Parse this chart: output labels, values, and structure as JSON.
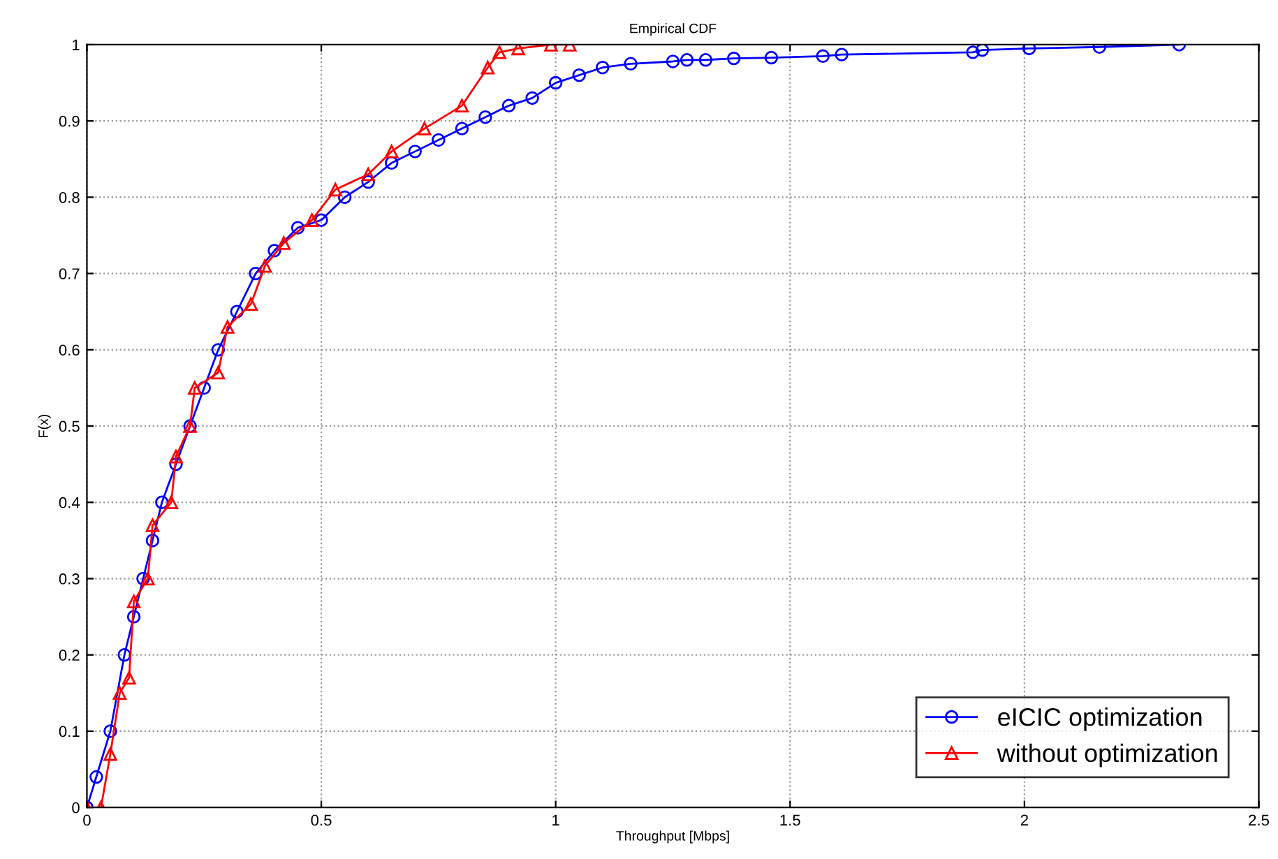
{
  "chart_data": {
    "type": "line",
    "title": "Empirical CDF",
    "xlabel": "Throughput [Mbps]",
    "ylabel": "F(x)",
    "xlim": [
      0,
      2.5
    ],
    "xticks": [
      0,
      0.5,
      1,
      1.5,
      2,
      2.5
    ],
    "ylim": [
      0,
      1
    ],
    "yticks": [
      0,
      0.1,
      0.2,
      0.3,
      0.4,
      0.5,
      0.6,
      0.7,
      0.8,
      0.9,
      1
    ],
    "grid": true,
    "legend": "bottom right",
    "series": [
      {
        "name": "eICIC optimization",
        "color": "#0000ff",
        "marker": "circle",
        "x": [
          0,
          0.02,
          0.05,
          0.08,
          0.1,
          0.12,
          0.14,
          0.16,
          0.19,
          0.22,
          0.25,
          0.28,
          0.32,
          0.36,
          0.4,
          0.45,
          0.5,
          0.55,
          0.6,
          0.65,
          0.7,
          0.75,
          0.8,
          0.85,
          0.9,
          0.95,
          1.0,
          1.05,
          1.1,
          1.16,
          1.25,
          1.28,
          1.32,
          1.38,
          1.46,
          1.57,
          1.61,
          1.89,
          1.91,
          2.01,
          2.16,
          2.33
        ],
        "values": [
          0,
          0.04,
          0.1,
          0.2,
          0.25,
          0.3,
          0.35,
          0.4,
          0.45,
          0.5,
          0.55,
          0.6,
          0.65,
          0.7,
          0.73,
          0.76,
          0.77,
          0.8,
          0.82,
          0.845,
          0.86,
          0.875,
          0.89,
          0.905,
          0.92,
          0.93,
          0.95,
          0.96,
          0.97,
          0.975,
          0.978,
          0.98,
          0.98,
          0.982,
          0.983,
          0.985,
          0.987,
          0.99,
          0.993,
          0.995,
          0.997,
          1.0
        ]
      },
      {
        "name": "without optimization",
        "color": "#ff0000",
        "marker": "triangle",
        "x": [
          0,
          0.03,
          0.05,
          0.07,
          0.09,
          0.1,
          0.13,
          0.14,
          0.18,
          0.19,
          0.22,
          0.23,
          0.28,
          0.3,
          0.35,
          0.38,
          0.42,
          0.48,
          0.53,
          0.6,
          0.65,
          0.72,
          0.8,
          0.855,
          0.88,
          0.92,
          0.99,
          1.03
        ],
        "values": [
          0,
          0,
          0.07,
          0.15,
          0.17,
          0.27,
          0.3,
          0.37,
          0.4,
          0.46,
          0.5,
          0.55,
          0.57,
          0.63,
          0.66,
          0.71,
          0.74,
          0.77,
          0.81,
          0.83,
          0.86,
          0.89,
          0.92,
          0.97,
          0.99,
          0.995,
          1.0,
          1.0
        ]
      }
    ]
  }
}
